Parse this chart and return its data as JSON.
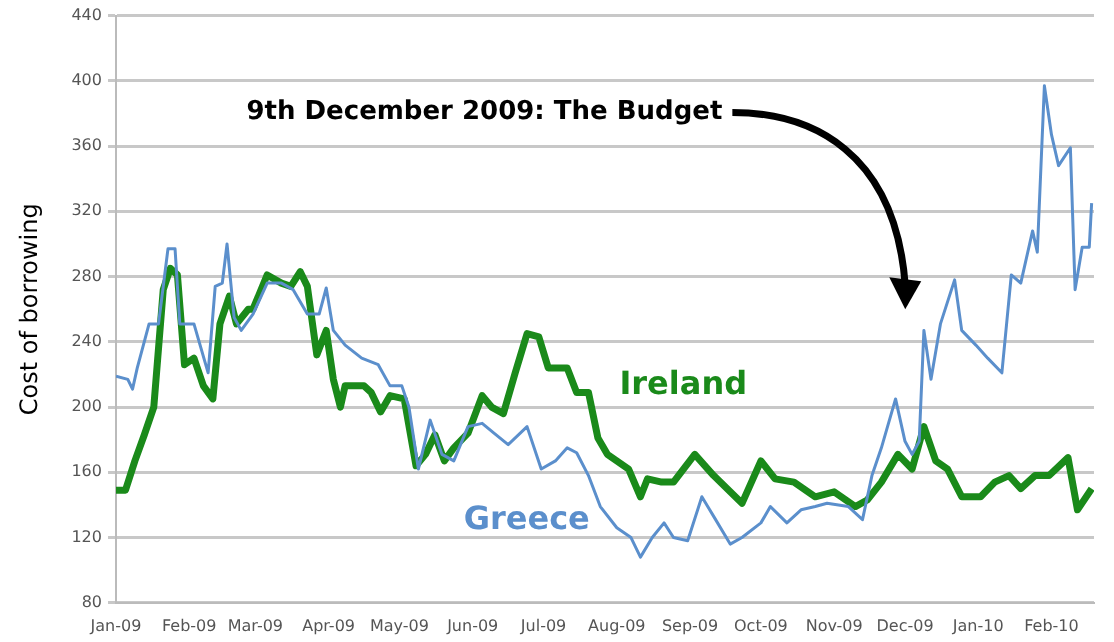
{
  "chart_data": {
    "type": "line",
    "ylabel": "Cost of borrowing",
    "xlim": [
      "2009-01-01",
      "2010-02-19"
    ],
    "ylim": [
      80,
      440
    ],
    "yticks": [
      80,
      120,
      160,
      200,
      240,
      280,
      320,
      360,
      400,
      440
    ],
    "xticks": [
      {
        "value": "2009-01-01",
        "label": "Jan-09"
      },
      {
        "value": "2009-02-01",
        "label": "Feb-09"
      },
      {
        "value": "2009-03-01",
        "label": "Mar-09"
      },
      {
        "value": "2009-04-01",
        "label": "Apr-09"
      },
      {
        "value": "2009-05-01",
        "label": "May-09"
      },
      {
        "value": "2009-06-01",
        "label": "Jun-09"
      },
      {
        "value": "2009-07-01",
        "label": "Jul-09"
      },
      {
        "value": "2009-08-01",
        "label": "Aug-09"
      },
      {
        "value": "2009-09-01",
        "label": "Sep-09"
      },
      {
        "value": "2009-10-01",
        "label": "Oct-09"
      },
      {
        "value": "2009-11-01",
        "label": "Nov-09"
      },
      {
        "value": "2009-12-01",
        "label": "Dec-09"
      },
      {
        "value": "2010-01-01",
        "label": "Jan-10"
      },
      {
        "value": "2010-02-01",
        "label": "Feb-10"
      }
    ],
    "grid": "y",
    "legend": false,
    "marker": "none",
    "line_style": "solid",
    "annotations": [
      "9th December 2009: The Budget"
    ],
    "series": [
      {
        "name": "Greece",
        "color": "#5b8fcc",
        "x": [
          "2009-01-01",
          "2009-01-06",
          "2009-01-08",
          "2009-01-10",
          "2009-01-15",
          "2009-01-19",
          "2009-01-23",
          "2009-01-26",
          "2009-01-28",
          "2009-02-03",
          "2009-02-06",
          "2009-02-09",
          "2009-02-12",
          "2009-02-15",
          "2009-02-17",
          "2009-02-20",
          "2009-02-23",
          "2009-02-28",
          "2009-03-06",
          "2009-03-12",
          "2009-03-17",
          "2009-03-23",
          "2009-03-28",
          "2009-03-31",
          "2009-04-03",
          "2009-04-08",
          "2009-04-15",
          "2009-04-22",
          "2009-04-27",
          "2009-05-02",
          "2009-05-05",
          "2009-05-09",
          "2009-05-14",
          "2009-05-19",
          "2009-05-24",
          "2009-05-30",
          "2009-06-05",
          "2009-06-10",
          "2009-06-16",
          "2009-06-24",
          "2009-06-30",
          "2009-07-06",
          "2009-07-11",
          "2009-07-15",
          "2009-07-20",
          "2009-07-25",
          "2009-08-01",
          "2009-08-07",
          "2009-08-11",
          "2009-08-16",
          "2009-08-21",
          "2009-08-25",
          "2009-08-31",
          "2009-09-06",
          "2009-09-11",
          "2009-09-18",
          "2009-09-23",
          "2009-10-01",
          "2009-10-05",
          "2009-10-12",
          "2009-10-18",
          "2009-10-24",
          "2009-10-29",
          "2009-11-07",
          "2009-11-13",
          "2009-11-17",
          "2009-11-21",
          "2009-11-27",
          "2009-12-01",
          "2009-12-04",
          "2009-12-07",
          "2009-12-09",
          "2009-12-12",
          "2009-12-16",
          "2009-12-22",
          "2009-12-25",
          "2009-12-31",
          "2010-01-05",
          "2010-01-11",
          "2010-01-15",
          "2010-01-19",
          "2010-01-24",
          "2010-01-26",
          "2010-01-29",
          "2010-02-01",
          "2010-02-04",
          "2010-02-09",
          "2010-02-11",
          "2010-02-14",
          "2010-02-17",
          "2010-02-18"
        ],
        "values": [
          219,
          217,
          211,
          224,
          251,
          251,
          297,
          297,
          251,
          251,
          236,
          221,
          274,
          276,
          300,
          255,
          247,
          257,
          276,
          276,
          272,
          257,
          257,
          273,
          247,
          238,
          230,
          226,
          213,
          213,
          200,
          162,
          192,
          171,
          167,
          188,
          190,
          184,
          177,
          188,
          162,
          167,
          175,
          172,
          158,
          139,
          126,
          120,
          108,
          120,
          129,
          120,
          118,
          145,
          133,
          116,
          120,
          129,
          139,
          129,
          137,
          139,
          141,
          139,
          131,
          158,
          175,
          205,
          179,
          171,
          179,
          247,
          217,
          251,
          278,
          247,
          238,
          230,
          221,
          281,
          276,
          308,
          295,
          397,
          367,
          348,
          359,
          272,
          298,
          298,
          325
        ]
      },
      {
        "name": "Ireland",
        "color": "#1a8a1a",
        "x": [
          "2009-01-01",
          "2009-01-05",
          "2009-01-09",
          "2009-01-13",
          "2009-01-17",
          "2009-01-21",
          "2009-01-24",
          "2009-01-27",
          "2009-01-30",
          "2009-02-03",
          "2009-02-07",
          "2009-02-11",
          "2009-02-14",
          "2009-02-18",
          "2009-02-21",
          "2009-02-26",
          "2009-02-28",
          "2009-03-06",
          "2009-03-12",
          "2009-03-16",
          "2009-03-20",
          "2009-03-23",
          "2009-03-27",
          "2009-03-31",
          "2009-04-03",
          "2009-04-06",
          "2009-04-08",
          "2009-04-16",
          "2009-04-19",
          "2009-04-23",
          "2009-04-27",
          "2009-05-03",
          "2009-05-08",
          "2009-05-12",
          "2009-05-16",
          "2009-05-20",
          "2009-05-24",
          "2009-05-30",
          "2009-06-05",
          "2009-06-09",
          "2009-06-14",
          "2009-06-19",
          "2009-06-24",
          "2009-06-29",
          "2009-07-03",
          "2009-07-11",
          "2009-07-15",
          "2009-07-20",
          "2009-07-24",
          "2009-07-28",
          "2009-08-06",
          "2009-08-11",
          "2009-08-14",
          "2009-08-20",
          "2009-08-25",
          "2009-09-03",
          "2009-09-11",
          "2009-09-23",
          "2009-10-01",
          "2009-10-07",
          "2009-10-15",
          "2009-10-24",
          "2009-11-01",
          "2009-11-10",
          "2009-11-15",
          "2009-11-21",
          "2009-11-28",
          "2009-12-04",
          "2009-12-09",
          "2009-12-14",
          "2009-12-19",
          "2009-12-25",
          "2010-01-02",
          "2010-01-08",
          "2010-01-14",
          "2010-01-19",
          "2010-01-25",
          "2010-01-31",
          "2010-02-08",
          "2010-02-12",
          "2010-02-18"
        ],
        "values": [
          149,
          149,
          167,
          183,
          200,
          272,
          285,
          281,
          226,
          230,
          213,
          205,
          251,
          268,
          251,
          260,
          260,
          281,
          276,
          274,
          283,
          274,
          232,
          247,
          217,
          200,
          213,
          213,
          209,
          197,
          207,
          205,
          164,
          171,
          183,
          167,
          175,
          184,
          207,
          200,
          196,
          221,
          245,
          243,
          224,
          224,
          209,
          209,
          181,
          171,
          162,
          145,
          156,
          154,
          154,
          171,
          158,
          141,
          167,
          156,
          154,
          145,
          148,
          139,
          143,
          154,
          171,
          162,
          188,
          167,
          162,
          145,
          145,
          154,
          158,
          150,
          158,
          158,
          169,
          137,
          150
        ]
      }
    ]
  }
}
